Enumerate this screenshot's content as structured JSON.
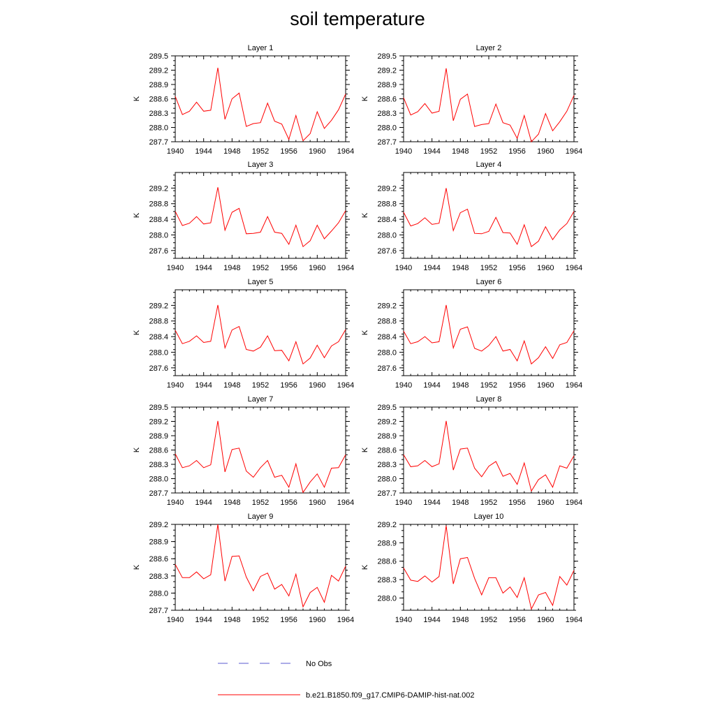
{
  "title": "soil temperature",
  "legend": {
    "entries": [
      {
        "label": "No Obs",
        "color": "#5a5ad0",
        "style": "dashed"
      },
      {
        "label": "b.e21.B1850.f09_g17.CMIP6-DAMIP-hist-nat.002",
        "color": "#ff0000",
        "style": "solid"
      }
    ]
  },
  "chart_data": [
    {
      "type": "line",
      "title": "Layer 1",
      "ylabel": "K",
      "xlim": [
        1940,
        1964
      ],
      "ylim": [
        287.7,
        289.5
      ],
      "xticks": [
        1940,
        1944,
        1948,
        1952,
        1956,
        1960,
        1964
      ],
      "yticks": [
        "287.7",
        "288.0",
        "288.3",
        "288.6",
        "288.9",
        "289.2",
        "289.5"
      ],
      "x": [
        1940,
        1941,
        1942,
        1943,
        1944,
        1945,
        1946,
        1947,
        1948,
        1949,
        1950,
        1951,
        1952,
        1953,
        1954,
        1955,
        1956,
        1957,
        1958,
        1959,
        1960,
        1961,
        1962,
        1963,
        1964
      ],
      "series": [
        {
          "name": "b.e21.B1850.f09_g17.CMIP6-DAMIP-hist-nat.002",
          "color": "#ff0000",
          "values": [
            288.65,
            288.27,
            288.34,
            288.53,
            288.34,
            288.36,
            289.25,
            288.17,
            288.6,
            288.72,
            288.02,
            288.08,
            288.1,
            288.51,
            288.13,
            288.07,
            287.75,
            288.25,
            287.72,
            287.87,
            288.33,
            287.98,
            288.15,
            288.37,
            288.7
          ]
        }
      ]
    },
    {
      "type": "line",
      "title": "Layer 2",
      "ylabel": "K",
      "xlim": [
        1940,
        1964
      ],
      "ylim": [
        287.7,
        289.5
      ],
      "xticks": [
        1940,
        1944,
        1948,
        1952,
        1956,
        1960,
        1964
      ],
      "yticks": [
        "287.7",
        "288.0",
        "288.3",
        "288.6",
        "288.9",
        "289.2",
        "289.5"
      ],
      "x": [
        1940,
        1941,
        1942,
        1943,
        1944,
        1945,
        1946,
        1947,
        1948,
        1949,
        1950,
        1951,
        1952,
        1953,
        1954,
        1955,
        1956,
        1957,
        1958,
        1959,
        1960,
        1961,
        1962,
        1963,
        1964
      ],
      "series": [
        {
          "name": "b.e21.B1850.f09_g17.CMIP6-DAMIP-hist-nat.002",
          "color": "#ff0000",
          "values": [
            288.62,
            288.26,
            288.33,
            288.5,
            288.3,
            288.34,
            289.24,
            288.14,
            288.59,
            288.7,
            288.02,
            288.06,
            288.08,
            288.49,
            288.1,
            288.05,
            287.77,
            288.25,
            287.7,
            287.86,
            288.29,
            287.93,
            288.12,
            288.34,
            288.67
          ]
        }
      ]
    },
    {
      "type": "line",
      "title": "Layer 3",
      "ylabel": "K",
      "xlim": [
        1940,
        1964
      ],
      "ylim": [
        287.4,
        289.6
      ],
      "xticks": [
        1940,
        1944,
        1948,
        1952,
        1956,
        1960,
        1964
      ],
      "yticks": [
        "287.6",
        "288.0",
        "288.4",
        "288.8",
        "289.2"
      ],
      "x": [
        1940,
        1941,
        1942,
        1943,
        1944,
        1945,
        1946,
        1947,
        1948,
        1949,
        1950,
        1951,
        1952,
        1953,
        1954,
        1955,
        1956,
        1957,
        1958,
        1959,
        1960,
        1961,
        1962,
        1963,
        1964
      ],
      "series": [
        {
          "name": "b.e21.B1850.f09_g17.CMIP6-DAMIP-hist-nat.002",
          "color": "#ff0000",
          "values": [
            288.6,
            288.24,
            288.3,
            288.47,
            288.28,
            288.31,
            289.22,
            288.12,
            288.58,
            288.68,
            288.03,
            288.04,
            288.07,
            288.47,
            288.07,
            288.04,
            287.76,
            288.25,
            287.7,
            287.85,
            288.25,
            287.9,
            288.1,
            288.31,
            288.62
          ]
        }
      ]
    },
    {
      "type": "line",
      "title": "Layer 4",
      "ylabel": "K",
      "xlim": [
        1940,
        1964
      ],
      "ylim": [
        287.4,
        289.6
      ],
      "xticks": [
        1940,
        1944,
        1948,
        1952,
        1956,
        1960,
        1964
      ],
      "yticks": [
        "287.6",
        "288.0",
        "288.4",
        "288.8",
        "289.2"
      ],
      "x": [
        1940,
        1941,
        1942,
        1943,
        1944,
        1945,
        1946,
        1947,
        1948,
        1949,
        1950,
        1951,
        1952,
        1953,
        1954,
        1955,
        1956,
        1957,
        1958,
        1959,
        1960,
        1961,
        1962,
        1963,
        1964
      ],
      "series": [
        {
          "name": "b.e21.B1850.f09_g17.CMIP6-DAMIP-hist-nat.002",
          "color": "#ff0000",
          "values": [
            288.58,
            288.23,
            288.29,
            288.44,
            288.27,
            288.3,
            289.2,
            288.11,
            288.57,
            288.66,
            288.04,
            288.03,
            288.09,
            288.45,
            288.06,
            288.05,
            287.76,
            288.26,
            287.7,
            287.84,
            288.21,
            287.88,
            288.13,
            288.29,
            288.6
          ]
        }
      ]
    },
    {
      "type": "line",
      "title": "Layer 5",
      "ylabel": "K",
      "xlim": [
        1940,
        1964
      ],
      "ylim": [
        287.4,
        289.6
      ],
      "xticks": [
        1940,
        1944,
        1948,
        1952,
        1956,
        1960,
        1964
      ],
      "yticks": [
        "287.6",
        "288.0",
        "288.4",
        "288.8",
        "289.2"
      ],
      "x": [
        1940,
        1941,
        1942,
        1943,
        1944,
        1945,
        1946,
        1947,
        1948,
        1949,
        1950,
        1951,
        1952,
        1953,
        1954,
        1955,
        1956,
        1957,
        1958,
        1959,
        1960,
        1961,
        1962,
        1963,
        1964
      ],
      "series": [
        {
          "name": "b.e21.B1850.f09_g17.CMIP6-DAMIP-hist-nat.002",
          "color": "#ff0000",
          "values": [
            288.56,
            288.22,
            288.28,
            288.42,
            288.25,
            288.28,
            289.21,
            288.11,
            288.57,
            288.66,
            288.07,
            288.03,
            288.13,
            288.42,
            288.04,
            288.05,
            287.78,
            288.27,
            287.7,
            287.85,
            288.18,
            287.86,
            288.16,
            288.27,
            288.58
          ]
        }
      ]
    },
    {
      "type": "line",
      "title": "Layer 6",
      "ylabel": "K",
      "xlim": [
        1940,
        1964
      ],
      "ylim": [
        287.4,
        289.6
      ],
      "xticks": [
        1940,
        1944,
        1948,
        1952,
        1956,
        1960,
        1964
      ],
      "yticks": [
        "287.6",
        "288.0",
        "288.4",
        "288.8",
        "289.2"
      ],
      "x": [
        1940,
        1941,
        1942,
        1943,
        1944,
        1945,
        1946,
        1947,
        1948,
        1949,
        1950,
        1951,
        1952,
        1953,
        1954,
        1955,
        1956,
        1957,
        1958,
        1959,
        1960,
        1961,
        1962,
        1963,
        1964
      ],
      "series": [
        {
          "name": "b.e21.B1850.f09_g17.CMIP6-DAMIP-hist-nat.002",
          "color": "#ff0000",
          "values": [
            288.54,
            288.22,
            288.27,
            288.4,
            288.24,
            288.27,
            289.21,
            288.11,
            288.59,
            288.65,
            288.1,
            288.03,
            288.17,
            288.4,
            288.03,
            288.07,
            287.78,
            288.29,
            287.7,
            287.86,
            288.14,
            287.84,
            288.19,
            288.25,
            288.55
          ]
        }
      ]
    },
    {
      "type": "line",
      "title": "Layer 7",
      "ylabel": "K",
      "xlim": [
        1940,
        1964
      ],
      "ylim": [
        287.7,
        289.5
      ],
      "xticks": [
        1940,
        1944,
        1948,
        1952,
        1956,
        1960,
        1964
      ],
      "yticks": [
        "287.7",
        "288.0",
        "288.3",
        "288.6",
        "288.9",
        "289.2",
        "289.5"
      ],
      "x": [
        1940,
        1941,
        1942,
        1943,
        1944,
        1945,
        1946,
        1947,
        1948,
        1949,
        1950,
        1951,
        1952,
        1953,
        1954,
        1955,
        1956,
        1957,
        1958,
        1959,
        1960,
        1961,
        1962,
        1963,
        1964
      ],
      "series": [
        {
          "name": "b.e21.B1850.f09_g17.CMIP6-DAMIP-hist-nat.002",
          "color": "#ff0000",
          "values": [
            288.52,
            288.23,
            288.27,
            288.38,
            288.23,
            288.29,
            289.21,
            288.14,
            288.61,
            288.64,
            288.16,
            288.03,
            288.23,
            288.38,
            288.03,
            288.07,
            287.82,
            288.31,
            287.71,
            287.93,
            288.1,
            287.82,
            288.22,
            288.23,
            288.5
          ]
        }
      ]
    },
    {
      "type": "line",
      "title": "Layer 8",
      "ylabel": "K",
      "xlim": [
        1940,
        1964
      ],
      "ylim": [
        287.7,
        289.5
      ],
      "xticks": [
        1940,
        1944,
        1948,
        1952,
        1956,
        1960,
        1964
      ],
      "yticks": [
        "287.7",
        "288.0",
        "288.3",
        "288.6",
        "288.9",
        "289.2",
        "289.5"
      ],
      "x": [
        1940,
        1941,
        1942,
        1943,
        1944,
        1945,
        1946,
        1947,
        1948,
        1949,
        1950,
        1951,
        1952,
        1953,
        1954,
        1955,
        1956,
        1957,
        1958,
        1959,
        1960,
        1961,
        1962,
        1963,
        1964
      ],
      "series": [
        {
          "name": "b.e21.B1850.f09_g17.CMIP6-DAMIP-hist-nat.002",
          "color": "#ff0000",
          "values": [
            288.5,
            288.25,
            288.27,
            288.38,
            288.25,
            288.31,
            289.21,
            288.18,
            288.62,
            288.64,
            288.22,
            288.04,
            288.26,
            288.36,
            288.05,
            288.11,
            287.88,
            288.33,
            287.74,
            287.98,
            288.08,
            287.82,
            288.27,
            288.22,
            288.48
          ]
        }
      ]
    },
    {
      "type": "line",
      "title": "Layer 9",
      "ylabel": "K",
      "xlim": [
        1940,
        1964
      ],
      "ylim": [
        287.7,
        289.2
      ],
      "xticks": [
        1940,
        1944,
        1948,
        1952,
        1956,
        1960,
        1964
      ],
      "yticks": [
        "287.7",
        "288.0",
        "288.3",
        "288.6",
        "288.9",
        "289.2"
      ],
      "x": [
        1940,
        1941,
        1942,
        1943,
        1944,
        1945,
        1946,
        1947,
        1948,
        1949,
        1950,
        1951,
        1952,
        1953,
        1954,
        1955,
        1956,
        1957,
        1958,
        1959,
        1960,
        1961,
        1962,
        1963,
        1964
      ],
      "series": [
        {
          "name": "b.e21.B1850.f09_g17.CMIP6-DAMIP-hist-nat.002",
          "color": "#ff0000",
          "values": [
            288.5,
            288.27,
            288.27,
            288.37,
            288.25,
            288.32,
            289.2,
            288.21,
            288.64,
            288.65,
            288.28,
            288.04,
            288.29,
            288.35,
            288.07,
            288.15,
            287.95,
            288.33,
            287.76,
            288.01,
            288.1,
            287.84,
            288.31,
            288.21,
            288.47
          ]
        }
      ]
    },
    {
      "type": "line",
      "title": "Layer 10",
      "ylabel": "K",
      "xlim": [
        1940,
        1964
      ],
      "ylim": [
        287.8,
        289.2
      ],
      "xticks": [
        1940,
        1944,
        1948,
        1952,
        1956,
        1960,
        1964
      ],
      "yticks": [
        "288.0",
        "288.3",
        "288.6",
        "288.9",
        "289.2"
      ],
      "x": [
        1940,
        1941,
        1942,
        1943,
        1944,
        1945,
        1946,
        1947,
        1948,
        1949,
        1950,
        1951,
        1952,
        1953,
        1954,
        1955,
        1956,
        1957,
        1958,
        1959,
        1960,
        1961,
        1962,
        1963,
        1964
      ],
      "series": [
        {
          "name": "b.e21.B1850.f09_g17.CMIP6-DAMIP-hist-nat.002",
          "color": "#ff0000",
          "values": [
            288.49,
            288.29,
            288.27,
            288.36,
            288.26,
            288.35,
            289.18,
            288.23,
            288.64,
            288.66,
            288.32,
            288.05,
            288.33,
            288.33,
            288.08,
            288.18,
            288.01,
            288.33,
            287.82,
            288.05,
            288.09,
            287.88,
            288.35,
            288.21,
            288.45
          ]
        }
      ]
    }
  ]
}
